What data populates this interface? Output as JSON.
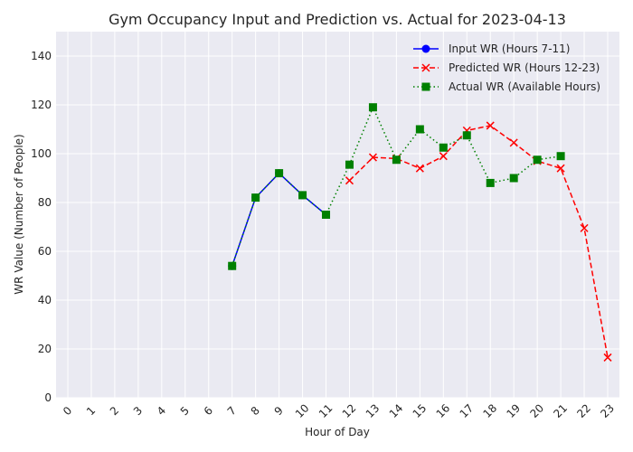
{
  "chart_data": {
    "type": "line",
    "title": "Gym Occupancy Input and Prediction vs. Actual for 2023-04-13",
    "xlabel": "Hour of Day",
    "ylabel": "WR Value (Number of People)",
    "xlim": [
      -0.5,
      23.5
    ],
    "ylim": [
      0,
      150
    ],
    "xticks": [
      0,
      1,
      2,
      3,
      4,
      5,
      6,
      7,
      8,
      9,
      10,
      11,
      12,
      13,
      14,
      15,
      16,
      17,
      18,
      19,
      20,
      21,
      22,
      23
    ],
    "yticks": [
      0,
      20,
      40,
      60,
      80,
      100,
      120,
      140
    ],
    "grid": true,
    "legend_position": "top-right",
    "series": [
      {
        "name": "Input WR (Hours 7-11)",
        "color": "#0000ff",
        "marker": "circle",
        "line_style": "solid",
        "x": [
          7,
          8,
          9,
          10,
          11
        ],
        "y": [
          54,
          82,
          92,
          83,
          75
        ]
      },
      {
        "name": "Predicted WR (Hours 12-23)",
        "color": "#ff0000",
        "marker": "x",
        "line_style": "dashed",
        "x": [
          12,
          13,
          14,
          15,
          16,
          17,
          18,
          19,
          20,
          21,
          22,
          23
        ],
        "y": [
          89,
          98.5,
          98,
          94,
          99,
          109.5,
          111.5,
          104.5,
          97,
          94,
          69.5,
          16.5
        ]
      },
      {
        "name": "Actual WR (Available Hours)",
        "color": "#008000",
        "marker": "square",
        "line_style": "dotted",
        "x": [
          7,
          8,
          9,
          10,
          11,
          12,
          13,
          14,
          15,
          16,
          17,
          18,
          19,
          20,
          21
        ],
        "y": [
          54,
          82,
          92,
          83,
          75,
          95.5,
          119,
          97.5,
          110,
          102.5,
          107.5,
          88,
          90,
          97.5,
          99
        ]
      }
    ]
  }
}
